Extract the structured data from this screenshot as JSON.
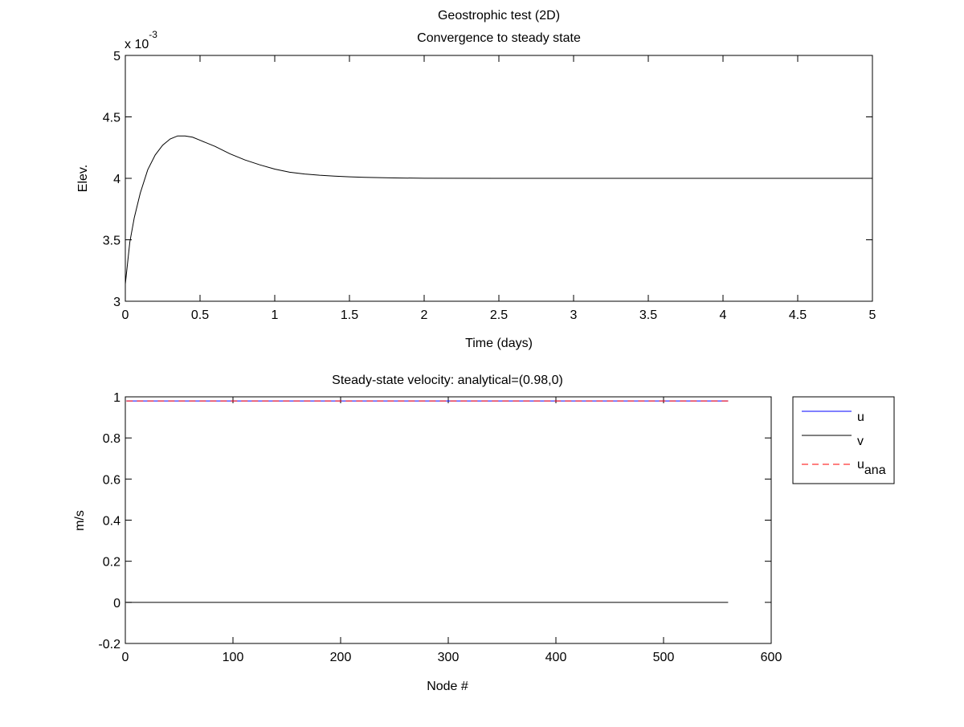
{
  "figure": {
    "background": "#ffffff"
  },
  "chart_data": [
    {
      "type": "line",
      "title_lines": [
        "Geostrophic test (2D)",
        "Convergence to steady state"
      ],
      "xlabel": "Time (days)",
      "ylabel": "Elev.",
      "exponent_label": "x 10",
      "exponent_power": "-3",
      "xlim": [
        0,
        5
      ],
      "ylim": [
        3,
        5
      ],
      "xticks": [
        "0",
        "0.5",
        "1",
        "1.5",
        "2",
        "2.5",
        "3",
        "3.5",
        "4",
        "4.5",
        "5"
      ],
      "yticks": [
        "3",
        "3.5",
        "4",
        "4.5",
        "5"
      ],
      "grid": false,
      "series": [
        {
          "color": "#000000",
          "line_style": "solid",
          "x": [
            0,
            0.03,
            0.06,
            0.1,
            0.15,
            0.2,
            0.25,
            0.3,
            0.35,
            0.4,
            0.45,
            0.5,
            0.6,
            0.7,
            0.8,
            0.9,
            1.0,
            1.1,
            1.2,
            1.3,
            1.4,
            1.5,
            1.6,
            1.8,
            2.0,
            2.5,
            3.0,
            3.5,
            4.0,
            4.5,
            5.0
          ],
          "y": [
            3.14,
            3.48,
            3.68,
            3.88,
            4.07,
            4.19,
            4.27,
            4.32,
            4.345,
            4.345,
            4.335,
            4.31,
            4.26,
            4.2,
            4.15,
            4.11,
            4.075,
            4.05,
            4.035,
            4.025,
            4.018,
            4.012,
            4.008,
            4.003,
            4.001,
            4.0,
            4.0,
            4.0,
            4.0,
            4.0,
            4.0
          ]
        }
      ]
    },
    {
      "type": "line",
      "title": "Steady-state velocity: analytical=(0.98,0)",
      "xlabel": "Node #",
      "ylabel": "m/s",
      "xlim": [
        0,
        600
      ],
      "ylim": [
        -0.2,
        1
      ],
      "xticks": [
        "0",
        "100",
        "200",
        "300",
        "400",
        "500",
        "600"
      ],
      "yticks": [
        "-0.2",
        "0",
        "0.2",
        "0.4",
        "0.6",
        "0.8",
        "1"
      ],
      "grid": false,
      "legend_position": "outside-top-right",
      "series": [
        {
          "name": "u",
          "color": "#0000ff",
          "line_style": "solid",
          "x": [
            1,
            560
          ],
          "y": [
            0.98,
            0.98
          ]
        },
        {
          "name": "v",
          "color": "#000000",
          "line_style": "solid",
          "x": [
            1,
            560
          ],
          "y": [
            0.0,
            0.0
          ]
        },
        {
          "name": "u",
          "name_subscript": "ana",
          "color": "#ff0000",
          "line_style": "dashed",
          "x": [
            1,
            560
          ],
          "y": [
            0.98,
            0.98
          ]
        }
      ]
    }
  ]
}
